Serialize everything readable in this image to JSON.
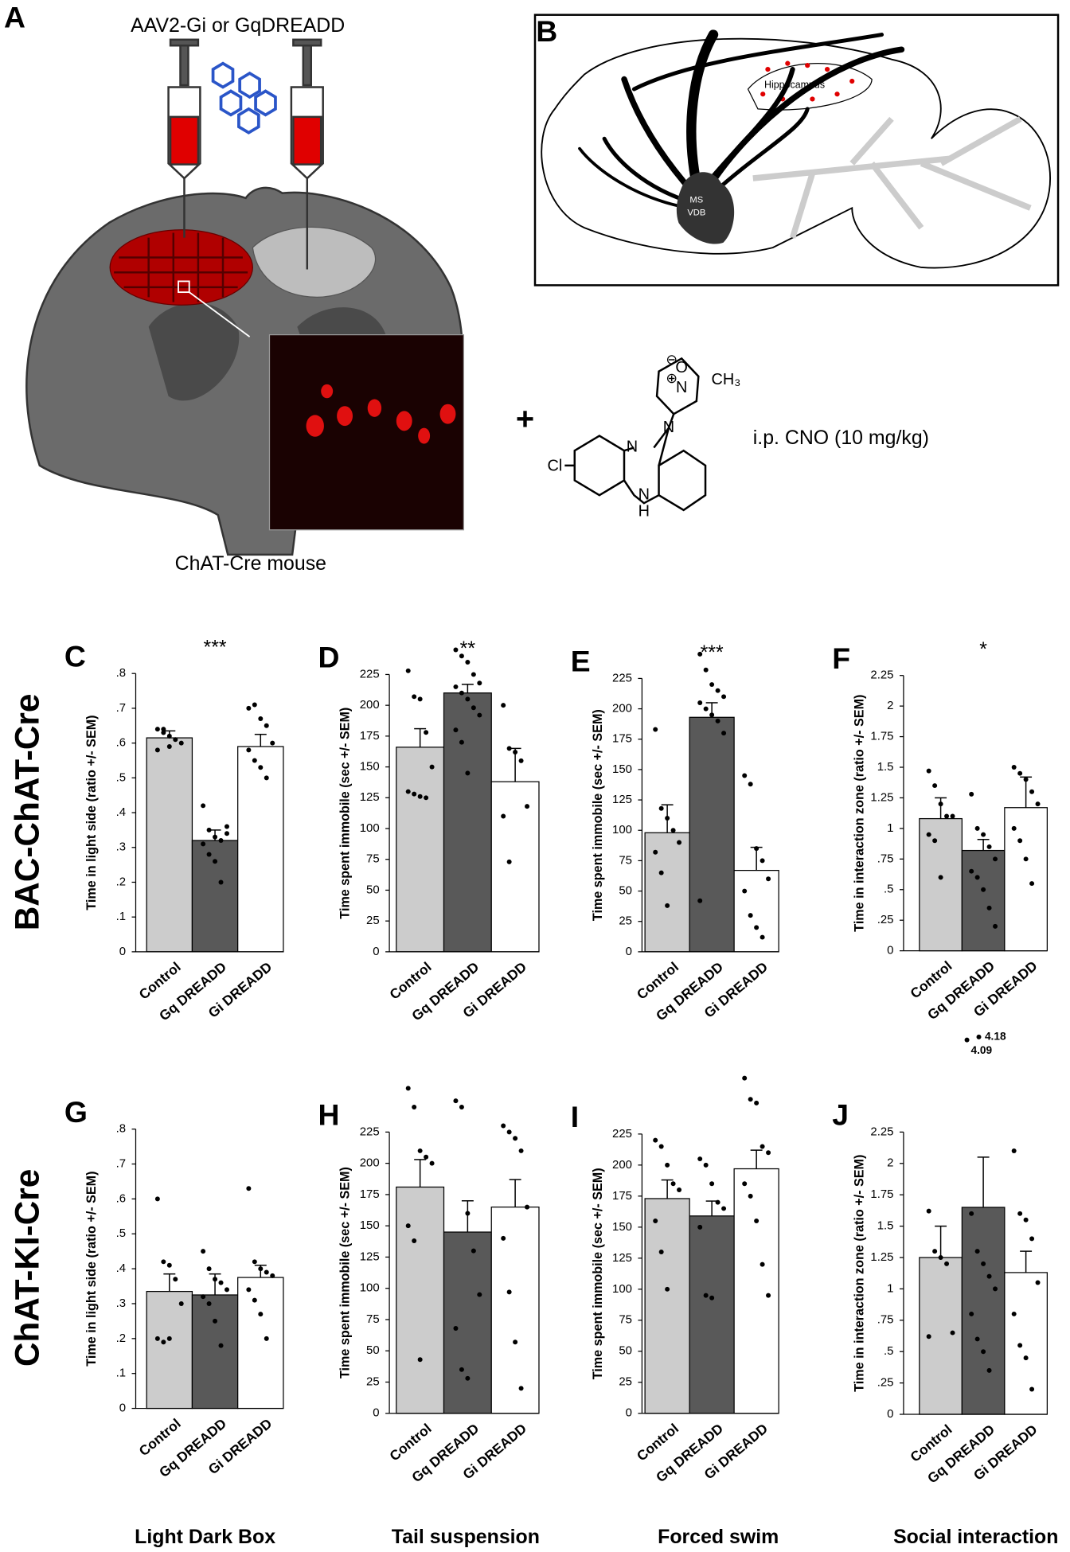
{
  "panel_a": {
    "label": "A",
    "vector": "AAV2-Gi or GqDREADD",
    "mouse": "ChAT-Cre mouse",
    "plus": "+",
    "drug": "i.p. CNO (10 mg/kg)",
    "atoms": [
      "O",
      "N",
      "CH₃",
      "N",
      "N",
      "N",
      "H",
      "Cl"
    ],
    "charges": [
      "⊖",
      "⊕"
    ]
  },
  "panel_b": {
    "label": "B",
    "region": "Hippocampus",
    "nuclei": [
      "MS",
      "VDB"
    ]
  },
  "row_labels": [
    "BAC-ChAT-Cre",
    "ChAT-KI-Cre"
  ],
  "column_labels": [
    "Light Dark Box",
    "Tail suspension",
    "Forced swim",
    "Social interaction"
  ],
  "chart_data": [
    {
      "type": "bar",
      "panel": "C",
      "ylabel": "Time in light side (ratio +/- SEM)",
      "significance": "***",
      "categories": [
        "Control",
        "Gq DREADD",
        "Gi DREADD"
      ],
      "colors": [
        "#cccccc",
        "#595959",
        "#ffffff"
      ],
      "values": [
        0.615,
        0.32,
        0.59
      ],
      "errors": [
        0.02,
        0.03,
        0.035
      ],
      "points": [
        [
          0.64,
          0.63,
          0.62,
          0.61,
          0.6,
          0.58,
          0.64,
          0.59
        ],
        [
          0.42,
          0.35,
          0.33,
          0.32,
          0.34,
          0.31,
          0.28,
          0.26,
          0.2,
          0.36
        ],
        [
          0.7,
          0.71,
          0.67,
          0.65,
          0.6,
          0.58,
          0.55,
          0.53,
          0.5
        ]
      ],
      "ylim": [
        0,
        0.8
      ],
      "yticks": [
        0,
        {
          "value": 0.1,
          "label": ".1"
        },
        {
          "value": 0.2,
          "label": ".2"
        },
        {
          "value": 0.3,
          "label": ".3"
        },
        {
          "value": 0.4,
          "label": ".4"
        },
        {
          "value": 0.5,
          "label": ".5"
        },
        {
          "value": 0.6,
          "label": ".6"
        },
        {
          "value": 0.7,
          "label": ".7"
        },
        {
          "value": 0.8,
          "label": ".8"
        }
      ]
    },
    {
      "type": "bar",
      "panel": "D",
      "ylabel": "Time spent immobile (sec +/- SEM)",
      "significance": "**",
      "categories": [
        "Control",
        "Gq DREADD",
        "Gi DREADD"
      ],
      "colors": [
        "#cccccc",
        "#595959",
        "#ffffff"
      ],
      "values": [
        166,
        210,
        138
      ],
      "errors": [
        15,
        7,
        27
      ],
      "points": [
        [
          228,
          207,
          205,
          178,
          150,
          130,
          128,
          126,
          125
        ],
        [
          245,
          240,
          235,
          225,
          218,
          215,
          210,
          205,
          198,
          192,
          180,
          170,
          145
        ],
        [
          200,
          165,
          162,
          155,
          118,
          110,
          73
        ]
      ],
      "ylim": [
        0,
        225
      ],
      "yticks": [
        0,
        25,
        50,
        75,
        100,
        125,
        150,
        175,
        200,
        225
      ]
    },
    {
      "type": "bar",
      "panel": "E",
      "ylabel": "Time spent immobile (sec +/- SEM)",
      "significance": "***",
      "categories": [
        "Control",
        "Gq DREADD",
        "Gi DREADD"
      ],
      "colors": [
        "#cccccc",
        "#595959",
        "#ffffff"
      ],
      "values": [
        98,
        193,
        67
      ],
      "errors": [
        23,
        12,
        19
      ],
      "points": [
        [
          183,
          118,
          110,
          100,
          90,
          82,
          65,
          38
        ],
        [
          245,
          232,
          220,
          215,
          210,
          205,
          200,
          195,
          190,
          180,
          42
        ],
        [
          145,
          138,
          85,
          75,
          60,
          50,
          30,
          20,
          12
        ]
      ],
      "ylim": [
        0,
        225
      ],
      "yticks": [
        0,
        25,
        50,
        75,
        100,
        125,
        150,
        175,
        200,
        225
      ]
    },
    {
      "type": "bar",
      "panel": "F",
      "ylabel": "Time in interaction zone (ratio +/- SEM)",
      "significance": "*",
      "categories": [
        "Control",
        "Gq DREADD",
        "Gi DREADD"
      ],
      "colors": [
        "#cccccc",
        "#595959",
        "#ffffff"
      ],
      "values": [
        1.08,
        0.82,
        1.17
      ],
      "errors": [
        0.17,
        0.09,
        0.25
      ],
      "points": [
        [
          1.47,
          1.35,
          1.2,
          1.1,
          1.1,
          0.95,
          0.9,
          0.6
        ],
        [
          1.28,
          1.0,
          0.95,
          0.85,
          0.75,
          0.65,
          0.6,
          0.5,
          0.35,
          0.2
        ],
        [
          1.5,
          1.45,
          1.4,
          1.3,
          1.2,
          1.0,
          0.9,
          0.75,
          0.55
        ]
      ],
      "outlier_labels": [
        4.18,
        4.09
      ],
      "ylim": [
        0,
        2.25
      ],
      "yticks": [
        0,
        {
          "value": 0.25,
          "label": ".25"
        },
        {
          "value": 0.5,
          "label": ".5"
        },
        {
          "value": 0.75,
          "label": ".75"
        },
        1,
        1.25,
        1.5,
        1.75,
        2,
        2.25
      ]
    },
    {
      "type": "bar",
      "panel": "G",
      "ylabel": "Time in light side (ratio +/- SEM)",
      "categories": [
        "Control",
        "Gq DREADD",
        "Gi DREADD"
      ],
      "colors": [
        "#cccccc",
        "#595959",
        "#ffffff"
      ],
      "values": [
        0.335,
        0.325,
        0.375
      ],
      "errors": [
        0.05,
        0.06,
        0.035
      ],
      "points": [
        [
          0.6,
          0.42,
          0.41,
          0.37,
          0.3,
          0.2,
          0.19,
          0.2
        ],
        [
          0.45,
          0.4,
          0.37,
          0.36,
          0.34,
          0.32,
          0.3,
          0.25,
          0.18
        ],
        [
          0.63,
          0.42,
          0.4,
          0.39,
          0.38,
          0.34,
          0.31,
          0.27,
          0.2
        ]
      ],
      "ylim": [
        0,
        0.8
      ],
      "yticks": [
        0,
        {
          "value": 0.1,
          "label": ".1"
        },
        {
          "value": 0.2,
          "label": ".2"
        },
        {
          "value": 0.3,
          "label": ".3"
        },
        {
          "value": 0.4,
          "label": ".4"
        },
        {
          "value": 0.5,
          "label": ".5"
        },
        {
          "value": 0.6,
          "label": ".6"
        },
        {
          "value": 0.7,
          "label": ".7"
        },
        {
          "value": 0.8,
          "label": ".8"
        }
      ]
    },
    {
      "type": "bar",
      "panel": "H",
      "ylabel": "Time spent immobile (sec +/- SEM)",
      "categories": [
        "Control",
        "Gq DREADD",
        "Gi DREADD"
      ],
      "colors": [
        "#cccccc",
        "#595959",
        "#ffffff"
      ],
      "values": [
        181,
        145,
        165
      ],
      "errors": [
        22,
        25,
        22
      ],
      "points": [
        [
          260,
          245,
          210,
          205,
          200,
          150,
          138,
          43
        ],
        [
          250,
          245,
          160,
          130,
          95,
          68,
          35,
          28
        ],
        [
          230,
          225,
          220,
          210,
          165,
          140,
          97,
          57,
          20
        ]
      ],
      "ylim": [
        0,
        225
      ],
      "yticks": [
        0,
        25,
        50,
        75,
        100,
        125,
        150,
        175,
        200,
        225
      ]
    },
    {
      "type": "bar",
      "panel": "I",
      "ylabel": "Time spent immobile (sec +/- SEM)",
      "categories": [
        "Control",
        "Gq DREADD",
        "Gi DREADD"
      ],
      "colors": [
        "#cccccc",
        "#595959",
        "#ffffff"
      ],
      "values": [
        173,
        159,
        197
      ],
      "errors": [
        15,
        12,
        15
      ],
      "points": [
        [
          220,
          215,
          200,
          185,
          180,
          155,
          130,
          100
        ],
        [
          205,
          200,
          185,
          170,
          165,
          150,
          95,
          93
        ],
        [
          270,
          253,
          250,
          215,
          210,
          185,
          175,
          155,
          120,
          95
        ]
      ],
      "ylim": [
        0,
        225
      ],
      "yticks": [
        0,
        25,
        50,
        75,
        100,
        125,
        150,
        175,
        200,
        225
      ]
    },
    {
      "type": "bar",
      "panel": "J",
      "ylabel": "Time in interaction zone (ratio +/- SEM)",
      "categories": [
        "Control",
        "Gq DREADD",
        "Gi DREADD"
      ],
      "colors": [
        "#cccccc",
        "#595959",
        "#ffffff"
      ],
      "values": [
        1.25,
        1.65,
        1.13
      ],
      "errors": [
        0.25,
        0.4,
        0.17
      ],
      "points": [
        [
          1.62,
          1.3,
          1.25,
          1.2,
          0.65,
          0.62
        ],
        [
          1.6,
          1.3,
          1.2,
          1.1,
          1.0,
          0.8,
          0.6,
          0.5,
          0.35
        ],
        [
          2.1,
          1.6,
          1.55,
          1.4,
          1.05,
          0.8,
          0.55,
          0.45,
          0.2
        ]
      ],
      "ylim": [
        0,
        2.25
      ],
      "yticks": [
        0,
        {
          "value": 0.25,
          "label": ".25"
        },
        {
          "value": 0.5,
          "label": ".5"
        },
        {
          "value": 0.75,
          "label": ".75"
        },
        1,
        1.25,
        1.5,
        1.75,
        2,
        2.25
      ]
    }
  ]
}
